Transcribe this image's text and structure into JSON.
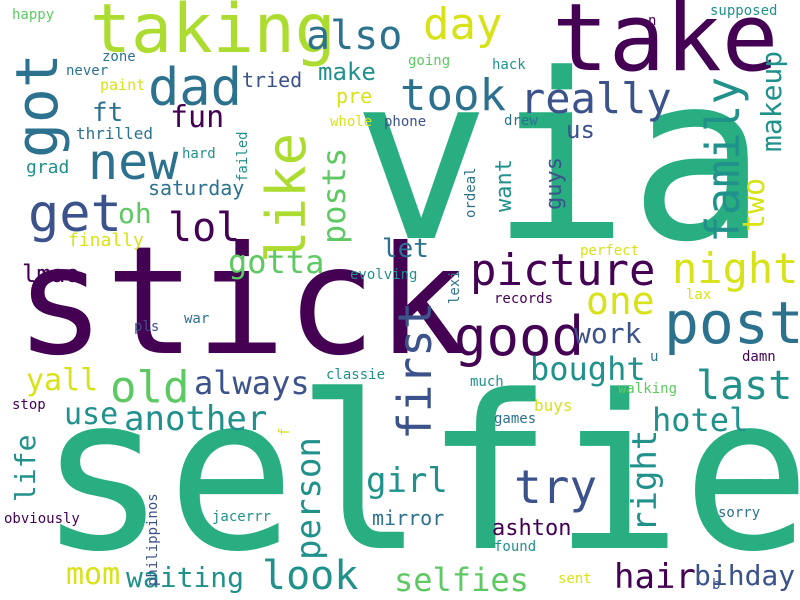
{
  "palette": {
    "dark_purple": "#440154",
    "indigo": "#3b528b",
    "teal_blue": "#2c728e",
    "teal": "#21918c",
    "green": "#28ae80",
    "light_green": "#5ec962",
    "yellow_green": "#addc30",
    "yellow": "#d8e219"
  },
  "words": {
    "selfie": "selfie",
    "stick": "stick",
    "via": "via",
    "take": "take",
    "taking": "taking",
    "got": "got",
    "dad": "dad",
    "also": "also",
    "day": "day",
    "like": "like",
    "new": "new",
    "took": "took",
    "really": "really",
    "family": "family",
    "makeup": "makeup",
    "get": "get",
    "lol": "lol",
    "fun": "fun",
    "ft": "ft",
    "oh": "oh",
    "post": "post",
    "picture": "picture",
    "good": "good",
    "night": "night",
    "one": "one",
    "first": "first",
    "posts": "posts",
    "old": "old",
    "always": "always",
    "last": "last",
    "bought": "bought",
    "another": "another",
    "hotel": "hotel",
    "use": "use",
    "try": "try",
    "girl": "girl",
    "right": "right",
    "person": "person",
    "life": "life",
    "look": "look",
    "selfies": "selfies",
    "hair": "hair",
    "bihday": "bihday",
    "mom": "mom",
    "waiting": "waiting",
    "ashton": "ashton",
    "mirror": "mirror",
    "lmao": "lmao",
    "yall": "yall",
    "gotta": "gotta",
    "let": "let",
    "two": "two",
    "make": "make",
    "pre": "pre",
    "us": "us",
    "want": "want",
    "guys": "guys",
    "work": "work",
    "saturday": "saturday",
    "grad": "grad",
    "finally": "finally",
    "tried": "tried",
    "thrilled": "thrilled",
    "paint": "paint",
    "never": "never",
    "zone": "zone",
    "happy": "happy",
    "going": "going",
    "hack": "hack",
    "whole": "whole",
    "phone": "phone",
    "drew": "drew",
    "hard": "hard",
    "failed": "failed",
    "ordeal": "ordeal",
    "supposed": "supposed",
    "n": "n",
    "perfect": "perfect",
    "evolving": "evolving",
    "lexi": "lexi",
    "records": "records",
    "lax": "lax",
    "war": "war",
    "pls": "pls",
    "classie": "classie",
    "much": "much",
    "u": "u",
    "damn": "damn",
    "walking": "walking",
    "stop": "stop",
    "buys": "buys",
    "games": "games",
    "f": "f",
    "philippinos": "philippinos",
    "obviously": "obviously",
    "jacerrr": "jacerrr",
    "found": "found",
    "sorry": "sorry",
    "sent": "sent",
    "b": "b"
  }
}
